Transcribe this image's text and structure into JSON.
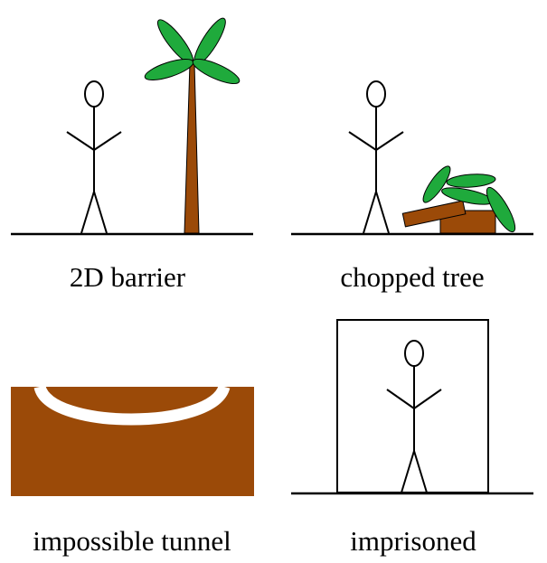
{
  "panels": {
    "barrier": {
      "caption": "2D barrier"
    },
    "chopped": {
      "caption": "chopped tree"
    },
    "tunnel": {
      "caption": "impossible tunnel"
    },
    "imprisoned": {
      "caption": "imprisoned"
    }
  },
  "colors": {
    "ground": "#000000",
    "trunk": "#9b4a08",
    "leaf": "#1faa3c",
    "dirt": "#9b4a08",
    "tunnel": "#ffffff"
  }
}
